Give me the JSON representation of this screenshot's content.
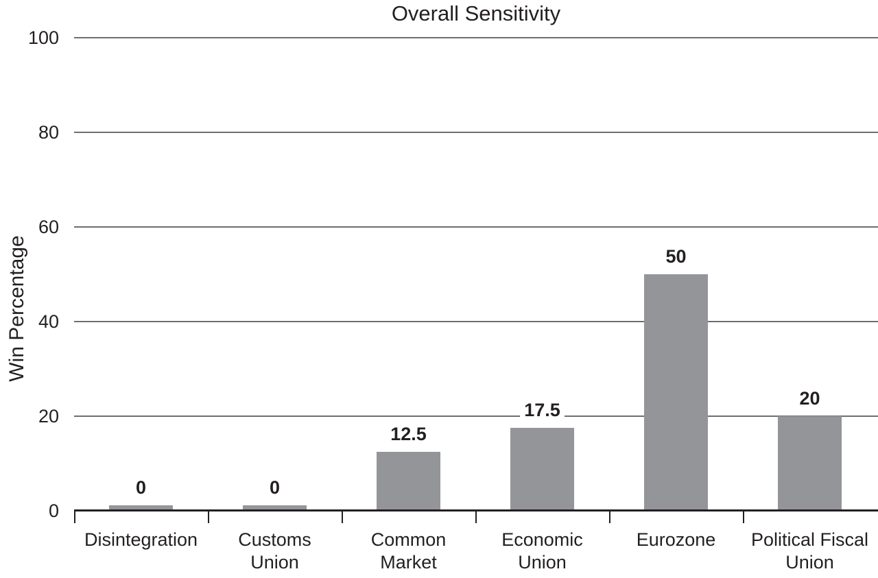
{
  "chart_data": {
    "type": "bar",
    "title": "Overall Sensitivity",
    "xlabel": "",
    "ylabel": "Win Percentage",
    "categories": [
      "Disintegration",
      "Customs\nUnion",
      "Common\nMarket",
      "Economic\nUnion",
      "Eurozone",
      "Political Fiscal\nUnion"
    ],
    "values": [
      0,
      0,
      12.5,
      17.5,
      50,
      20
    ],
    "value_labels": [
      "0",
      "0",
      "12.5",
      "17.5",
      "50",
      "20"
    ],
    "yticks": [
      100,
      80,
      60,
      40,
      20,
      0
    ],
    "ylim": [
      0,
      100
    ],
    "grid": true,
    "legend": false,
    "colors": {
      "bar": "#949599",
      "gridline": "#6d6e70",
      "axis": "#231f20",
      "text": "#231f20",
      "background": "#ffffff"
    }
  }
}
